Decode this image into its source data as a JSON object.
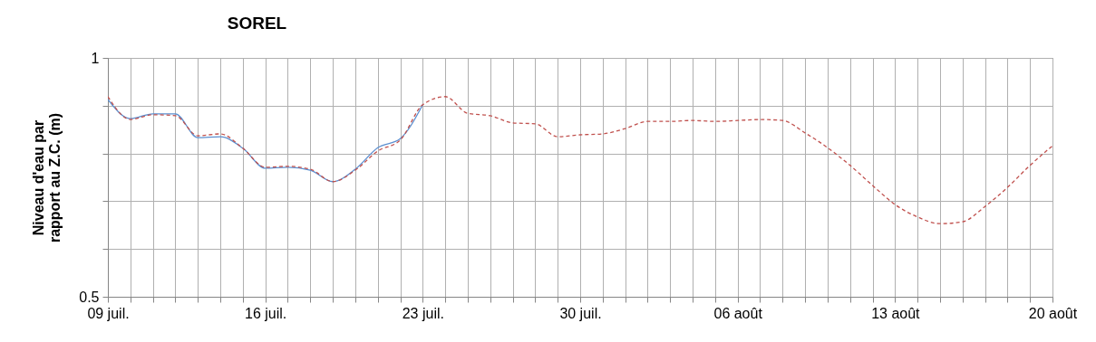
{
  "chart_data": {
    "type": "line",
    "title": "SOREL",
    "ylabel": "Niveau d'eau par rapport au Z.C. (m)",
    "x": [
      "--07-09",
      "--07-10",
      "--07-11",
      "--07-12",
      "--07-13",
      "--07-14",
      "--07-15",
      "--07-16",
      "--07-17",
      "--07-18",
      "--07-19",
      "--07-20",
      "--07-21",
      "--07-22",
      "--07-23",
      "--07-24",
      "--07-25",
      "--07-26",
      "--07-27",
      "--07-28",
      "--07-29",
      "--07-30",
      "--07-31",
      "--08-01",
      "--08-02",
      "--08-03",
      "--08-04",
      "--08-05",
      "--08-06",
      "--08-07",
      "--08-08",
      "--08-09",
      "--08-10",
      "--08-11",
      "--08-12",
      "--08-13",
      "--08-14",
      "--08-15",
      "--08-16",
      "--08-17",
      "--08-18",
      "--08-19",
      "--08-20"
    ],
    "series": [
      {
        "color": "#5b8fd0",
        "line_style": "solid",
        "x": [
          "--07-09",
          "--07-10",
          "--07-11",
          "--07-12",
          "--07-13",
          "--07-14",
          "--07-15",
          "--07-16",
          "--07-17",
          "--07-18",
          "--07-19",
          "--07-20",
          "--07-21",
          "--07-22",
          "--07-23"
        ],
        "values": [
          0.913,
          0.873,
          0.883,
          0.883,
          0.833,
          0.835,
          0.811,
          0.769,
          0.771,
          0.765,
          0.741,
          0.767,
          0.812,
          0.831,
          0.902
        ]
      },
      {
        "color": "#c0504d",
        "line_style": "dashed",
        "values": [
          0.919,
          0.871,
          0.881,
          0.879,
          0.837,
          0.841,
          0.811,
          0.771,
          0.773,
          0.767,
          0.741,
          0.765,
          0.805,
          0.828,
          0.902,
          0.919,
          0.884,
          0.879,
          0.864,
          0.862,
          0.835,
          0.839,
          0.841,
          0.852,
          0.867,
          0.867,
          0.869,
          0.867,
          0.869,
          0.871,
          0.869,
          0.843,
          0.812,
          0.775,
          0.733,
          0.693,
          0.667,
          0.653,
          0.657,
          0.689,
          0.729,
          0.775,
          0.816
        ]
      }
    ],
    "xlim": [
      "--07-09",
      "--08-20"
    ],
    "xticks": [
      {
        "value": "--07-09",
        "label": "09 juil."
      },
      {
        "value": "--07-10",
        "label": null
      },
      {
        "value": "--07-11",
        "label": null
      },
      {
        "value": "--07-12",
        "label": null
      },
      {
        "value": "--07-13",
        "label": null
      },
      {
        "value": "--07-14",
        "label": null
      },
      {
        "value": "--07-15",
        "label": null
      },
      {
        "value": "--07-16",
        "label": "16 juil."
      },
      {
        "value": "--07-17",
        "label": null
      },
      {
        "value": "--07-18",
        "label": null
      },
      {
        "value": "--07-19",
        "label": null
      },
      {
        "value": "--07-20",
        "label": null
      },
      {
        "value": "--07-21",
        "label": null
      },
      {
        "value": "--07-22",
        "label": null
      },
      {
        "value": "--07-23",
        "label": "23 juil."
      },
      {
        "value": "--07-24",
        "label": null
      },
      {
        "value": "--07-25",
        "label": null
      },
      {
        "value": "--07-26",
        "label": null
      },
      {
        "value": "--07-27",
        "label": null
      },
      {
        "value": "--07-28",
        "label": null
      },
      {
        "value": "--07-29",
        "label": null
      },
      {
        "value": "--07-30",
        "label": "30 juil."
      },
      {
        "value": "--07-31",
        "label": null
      },
      {
        "value": "--08-01",
        "label": null
      },
      {
        "value": "--08-02",
        "label": null
      },
      {
        "value": "--08-03",
        "label": null
      },
      {
        "value": "--08-04",
        "label": null
      },
      {
        "value": "--08-05",
        "label": null
      },
      {
        "value": "--08-06",
        "label": "06 août"
      },
      {
        "value": "--08-07",
        "label": null
      },
      {
        "value": "--08-08",
        "label": null
      },
      {
        "value": "--08-09",
        "label": null
      },
      {
        "value": "--08-10",
        "label": null
      },
      {
        "value": "--08-11",
        "label": null
      },
      {
        "value": "--08-12",
        "label": null
      },
      {
        "value": "--08-13",
        "label": "13 août"
      },
      {
        "value": "--08-14",
        "label": null
      },
      {
        "value": "--08-15",
        "label": null
      },
      {
        "value": "--08-16",
        "label": null
      },
      {
        "value": "--08-17",
        "label": null
      },
      {
        "value": "--08-18",
        "label": null
      },
      {
        "value": "--08-19",
        "label": null
      },
      {
        "value": "--08-20",
        "label": "20 août"
      }
    ],
    "ylim": [
      0.5,
      1
    ],
    "yticks": [
      0.5,
      {
        "value": 0.6,
        "label": null
      },
      {
        "value": 0.7,
        "label": null
      },
      {
        "value": 0.8,
        "label": null
      },
      {
        "value": 0.9,
        "label": null
      },
      1
    ],
    "grid": true
  }
}
